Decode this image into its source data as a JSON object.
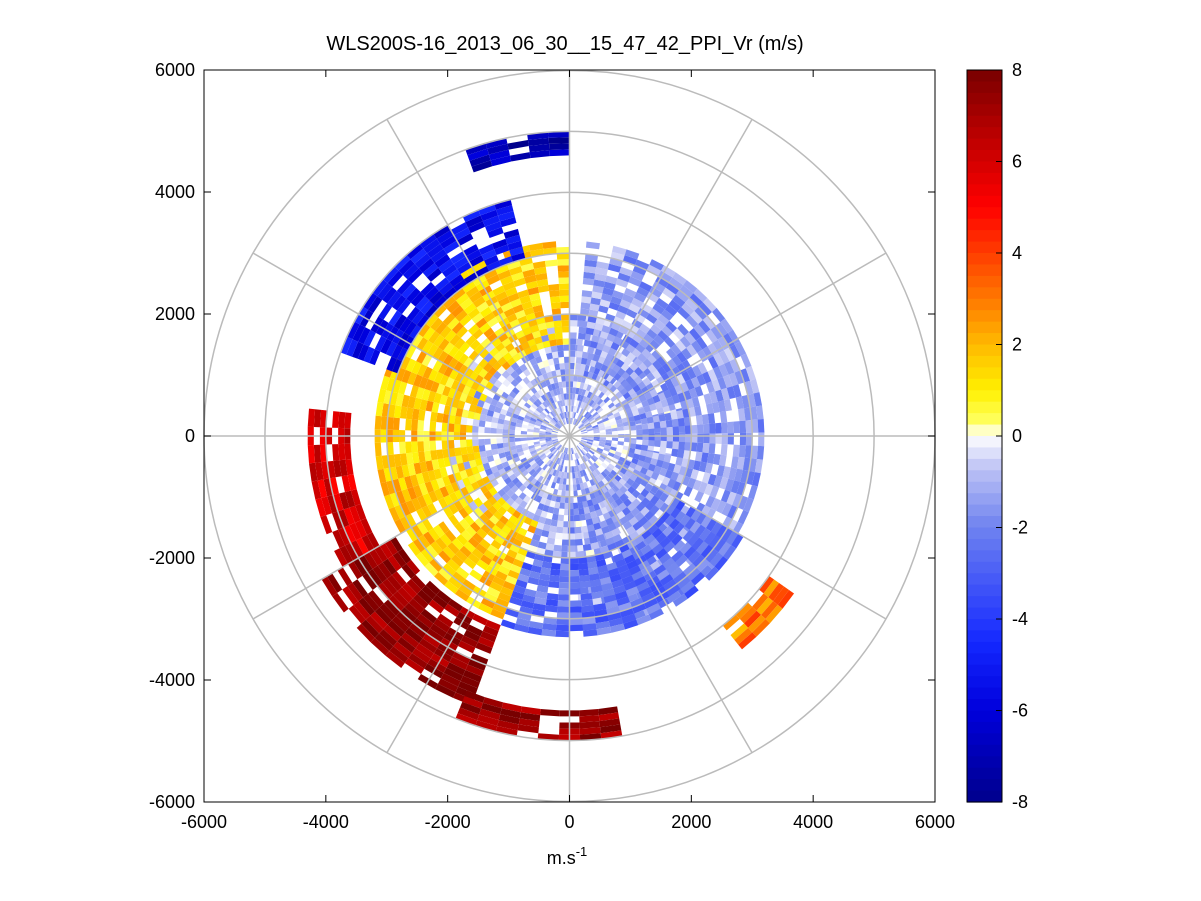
{
  "chart_data": {
    "type": "heatmap",
    "subtype": "polar-ppi",
    "title": "WLS200S-16_2013_06_30__15_47_42_PPI_Vr (m/s)",
    "xlabel": "m.s",
    "xlabel_superscript": "-1",
    "ylabel": "",
    "xlim": [
      -6000,
      6000
    ],
    "ylim": [
      -6000,
      6000
    ],
    "x_ticks": [
      -6000,
      -4000,
      -2000,
      0,
      2000,
      4000,
      6000
    ],
    "y_ticks": [
      6000,
      4000,
      2000,
      0,
      -2000,
      -4000,
      -6000
    ],
    "x_tick_labels": [
      "-6000",
      "-4000",
      "-2000",
      "0",
      "2000",
      "4000",
      "6000"
    ],
    "y_tick_labels": [
      "6000",
      "4000",
      "2000",
      "0",
      "-2000",
      "-4000",
      "-6000"
    ],
    "polar_grid_radii": [
      1000,
      2000,
      3000,
      4000,
      5000,
      6000
    ],
    "polar_grid_angles_deg": [
      0,
      30,
      60,
      90,
      120,
      150,
      180,
      210,
      240,
      270,
      300,
      330
    ],
    "colorbar": {
      "min": -8,
      "max": 8,
      "ticks": [
        8,
        6,
        4,
        2,
        0,
        -2,
        -4,
        -6,
        -8
      ],
      "tick_labels": [
        "8",
        "6",
        "4",
        "2",
        "0",
        "-2",
        "-4",
        "-6",
        "-8"
      ],
      "colormap": "blue-white-yellow-red"
    },
    "zones": [
      {
        "name": "near-center",
        "r": [
          200,
          2000
        ],
        "az_deg": [
          0,
          360
        ],
        "vr": -1.0
      },
      {
        "name": "northwest-yellow",
        "r": [
          1500,
          3200
        ],
        "az_deg": [
          200,
          358
        ],
        "vr": 1.5
      },
      {
        "name": "northeast-light-blue",
        "r": [
          1000,
          3200
        ],
        "az_deg": [
          5,
          180
        ],
        "vr": -1.5
      },
      {
        "name": "south-blue",
        "r": [
          2000,
          3300
        ],
        "az_deg": [
          120,
          200
        ],
        "vr": -2.5
      },
      {
        "name": "northwest-deep-blue",
        "r": [
          3000,
          4000
        ],
        "az_deg": [
          290,
          345
        ],
        "vr": -5.5
      },
      {
        "name": "north-dark-blue",
        "r": [
          4600,
          5000
        ],
        "az_deg": [
          340,
          358
        ],
        "vr": -7.0
      },
      {
        "name": "southwest-dark-red",
        "r": [
          3300,
          4700
        ],
        "az_deg": [
          200,
          240
        ],
        "vr": 7.5
      },
      {
        "name": "south-dark-red",
        "r": [
          4500,
          5000
        ],
        "az_deg": [
          170,
          200
        ],
        "vr": 7.5
      },
      {
        "name": "west-red",
        "r": [
          3600,
          4300
        ],
        "az_deg": [
          240,
          275
        ],
        "vr": 6.0
      },
      {
        "name": "southeast-orange",
        "r": [
          4000,
          4500
        ],
        "az_deg": [
          125,
          140
        ],
        "vr": 3.0
      }
    ]
  }
}
